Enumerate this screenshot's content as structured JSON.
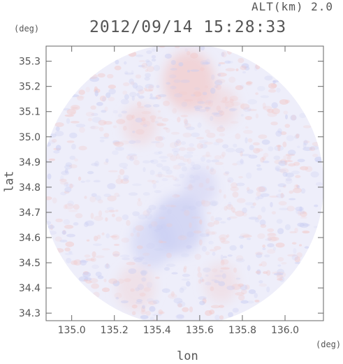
{
  "header": {
    "altitude_label": "ALT(km) 2.0",
    "timestamp": "2012/09/14 15:28:33"
  },
  "axes": {
    "y_unit": "(deg)",
    "x_unit": "(deg)",
    "x_label": "lon",
    "y_label": "lat"
  },
  "chart_data": {
    "type": "heatmap",
    "title": "2012/09/14 15:28:33",
    "subtitle": "ALT(km) 2.0",
    "xlabel": "lon",
    "ylabel": "lat",
    "xlim": [
      134.88,
      136.18
    ],
    "ylim": [
      34.27,
      35.36
    ],
    "x_ticks": [
      135.0,
      135.2,
      135.4,
      135.6,
      135.8,
      136.0
    ],
    "x_tick_labels": [
      "135.0",
      "135.2",
      "135.4",
      "135.6",
      "135.8",
      "136.0"
    ],
    "y_ticks": [
      34.3,
      34.4,
      34.5,
      34.6,
      34.7,
      34.8,
      34.9,
      35.0,
      35.1,
      35.2,
      35.3
    ],
    "y_tick_labels": [
      "34.3",
      "34.4",
      "34.5",
      "34.6",
      "34.7",
      "34.8",
      "34.9",
      "35.0",
      "35.1",
      "35.2",
      "35.3"
    ],
    "radar_center": [
      135.52,
      34.81
    ],
    "grid": false,
    "colors": {
      "positive": "#f2c9c9",
      "negative": "#c9cdf2",
      "neutral": "#eeeefa",
      "frame": "#666666"
    },
    "regions": [
      {
        "kind": "positive",
        "lon": 135.55,
        "lat": 35.22,
        "strength": 0.7,
        "spread": 0.12
      },
      {
        "kind": "positive",
        "lon": 135.32,
        "lat": 35.05,
        "strength": 0.45,
        "spread": 0.08
      },
      {
        "kind": "positive",
        "lon": 135.7,
        "lat": 35.12,
        "strength": 0.4,
        "spread": 0.08
      },
      {
        "kind": "negative",
        "lon": 135.5,
        "lat": 34.65,
        "strength": 0.7,
        "spread": 0.12
      },
      {
        "kind": "negative",
        "lon": 135.38,
        "lat": 34.58,
        "strength": 0.55,
        "spread": 0.1
      },
      {
        "kind": "negative",
        "lon": 135.6,
        "lat": 34.8,
        "strength": 0.45,
        "spread": 0.08
      },
      {
        "kind": "positive",
        "lon": 135.3,
        "lat": 34.4,
        "strength": 0.35,
        "spread": 0.09
      },
      {
        "kind": "positive",
        "lon": 135.7,
        "lat": 34.42,
        "strength": 0.35,
        "spread": 0.08
      }
    ]
  }
}
